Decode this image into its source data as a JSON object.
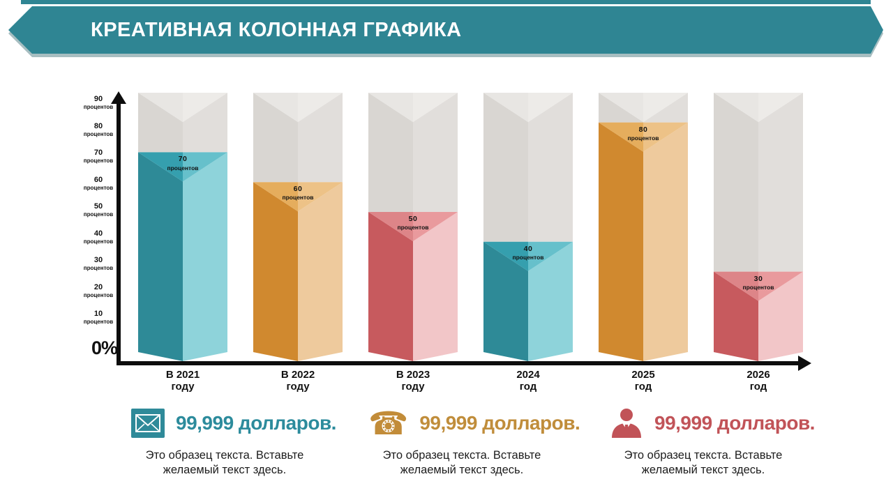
{
  "header": {
    "title": "КРЕАТИВНАЯ КОЛОННАЯ ГРАФИКА",
    "banner_color": "#2f8593"
  },
  "chart_data": {
    "type": "bar",
    "title": "КРЕАТИВНАЯ КОЛОННАЯ ГРАФИКА",
    "categories": [
      "В 2021 году",
      "В 2022 году",
      "В 2023 году",
      "2024 год",
      "2025 год",
      "2026 год"
    ],
    "categories_display": [
      "В 2021\nгоду",
      "В 2022\nгоду",
      "В 2023\nгоду",
      "2024\nгод",
      "2025\nгод",
      "2026\nгод"
    ],
    "values": [
      70,
      60,
      50,
      40,
      80,
      30
    ],
    "bar_label_unit": "процентов",
    "bar_colors": [
      "teal",
      "orange",
      "red",
      "teal",
      "orange",
      "red"
    ],
    "palette": {
      "teal": {
        "l": "#2e8a97",
        "r": "#8ed3da",
        "tl": "#359fae",
        "tr": "#66c0cb"
      },
      "orange": {
        "l": "#d0892f",
        "r": "#eeca9d",
        "tl": "#e5ad5d",
        "tr": "#edc287"
      },
      "red": {
        "l": "#c75a5e",
        "r": "#f2c6c8",
        "tl": "#dd8588",
        "tr": "#e99a9d"
      },
      "gray": {
        "l": "#d9d6d2",
        "r": "#e1dedb",
        "tl": "#e8e6e3",
        "tr": "#edebe8"
      }
    },
    "ylim": [
      0,
      90
    ],
    "ylabel": "",
    "xlabel": "",
    "grid": false,
    "legend": "none",
    "zero_label": "0%",
    "y_ticks": [
      {
        "num": "90",
        "unit": "процентов"
      },
      {
        "num": "80",
        "unit": "процентов"
      },
      {
        "num": "70",
        "unit": "процентов"
      },
      {
        "num": "60",
        "unit": "процентов"
      },
      {
        "num": "50",
        "unit": "процентов"
      },
      {
        "num": "40",
        "unit": "процентов"
      },
      {
        "num": "30",
        "unit": "процентов"
      },
      {
        "num": "20",
        "unit": "процентов"
      },
      {
        "num": "10",
        "unit": "процентов"
      }
    ]
  },
  "footer": {
    "items": [
      {
        "icon": "envelope-icon",
        "amount": "99,999 долларов.",
        "accent": "#2c8b9c",
        "text": "Это образец текста. Вставьте желаемый текст здесь."
      },
      {
        "icon": "phone-icon",
        "amount": "99,999 долларов.",
        "accent": "#c08d3b",
        "text": "Это образец текста. Вставьте желаемый текст здесь."
      },
      {
        "icon": "businessman-icon",
        "amount": "99,999 долларов.",
        "accent": "#c15358",
        "text": "Это образец текста. Вставьте желаемый текст здесь."
      }
    ],
    "phone_glyph": "☎"
  }
}
